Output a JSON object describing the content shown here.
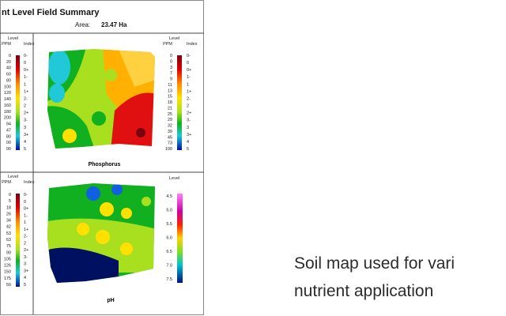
{
  "report": {
    "title": "nt Level Field Summary",
    "area_label": "Area:",
    "area_value": "23.47 Ha"
  },
  "panels": [
    {
      "legend": {
        "header": "Level",
        "col1": "PPM",
        "col2": "Index",
        "col1_values": [
          "0",
          "20",
          "40",
          "60",
          "80",
          "100",
          "120",
          "140",
          "160",
          "180",
          "200",
          "94",
          "47",
          "80",
          "00",
          "00"
        ],
        "col2_values": [
          "0-",
          "0",
          "0+",
          "1-",
          "1",
          "1+",
          "2-",
          "2",
          "2+",
          "3-",
          "3",
          "3+",
          "4",
          "5"
        ]
      }
    },
    {
      "name": "Phosphorus",
      "legend": {
        "header": "Level",
        "col1": "PPM",
        "col2": "Index",
        "col1_values": [
          "0",
          "0",
          "3",
          "7",
          "9",
          "11",
          "13",
          "15",
          "18",
          "21",
          "25",
          "29",
          "32",
          "39",
          "45",
          "73",
          "100"
        ],
        "col2_values": [
          "0-",
          "0",
          "0+",
          "1-",
          "1",
          "1+",
          "2-",
          "2",
          "2+",
          "3-",
          "3",
          "3+",
          "4",
          "5"
        ]
      }
    },
    {
      "legend": {
        "header": "Level",
        "col1": "PPM",
        "col2": "Index",
        "col1_values": [
          "0",
          "5",
          "18",
          "26",
          "34",
          "42",
          "53",
          "63",
          "75",
          "90",
          "105",
          "126",
          "150",
          "175",
          "50"
        ],
        "col2_values": [
          "0-",
          "0",
          "0+",
          "1-",
          "1",
          "1+",
          "2-",
          "2",
          "2+",
          "3-",
          "3",
          "3+",
          "4",
          "5"
        ]
      }
    },
    {
      "name": "pH",
      "legend": {
        "header": "Level",
        "col1_values": [
          "4.5",
          "5.0",
          "5.5",
          "6.0",
          "6.5",
          "7.0",
          "7.5"
        ]
      }
    }
  ],
  "caption": {
    "lines": [
      "Soil map used for vari",
      "nutrient application"
    ]
  }
}
